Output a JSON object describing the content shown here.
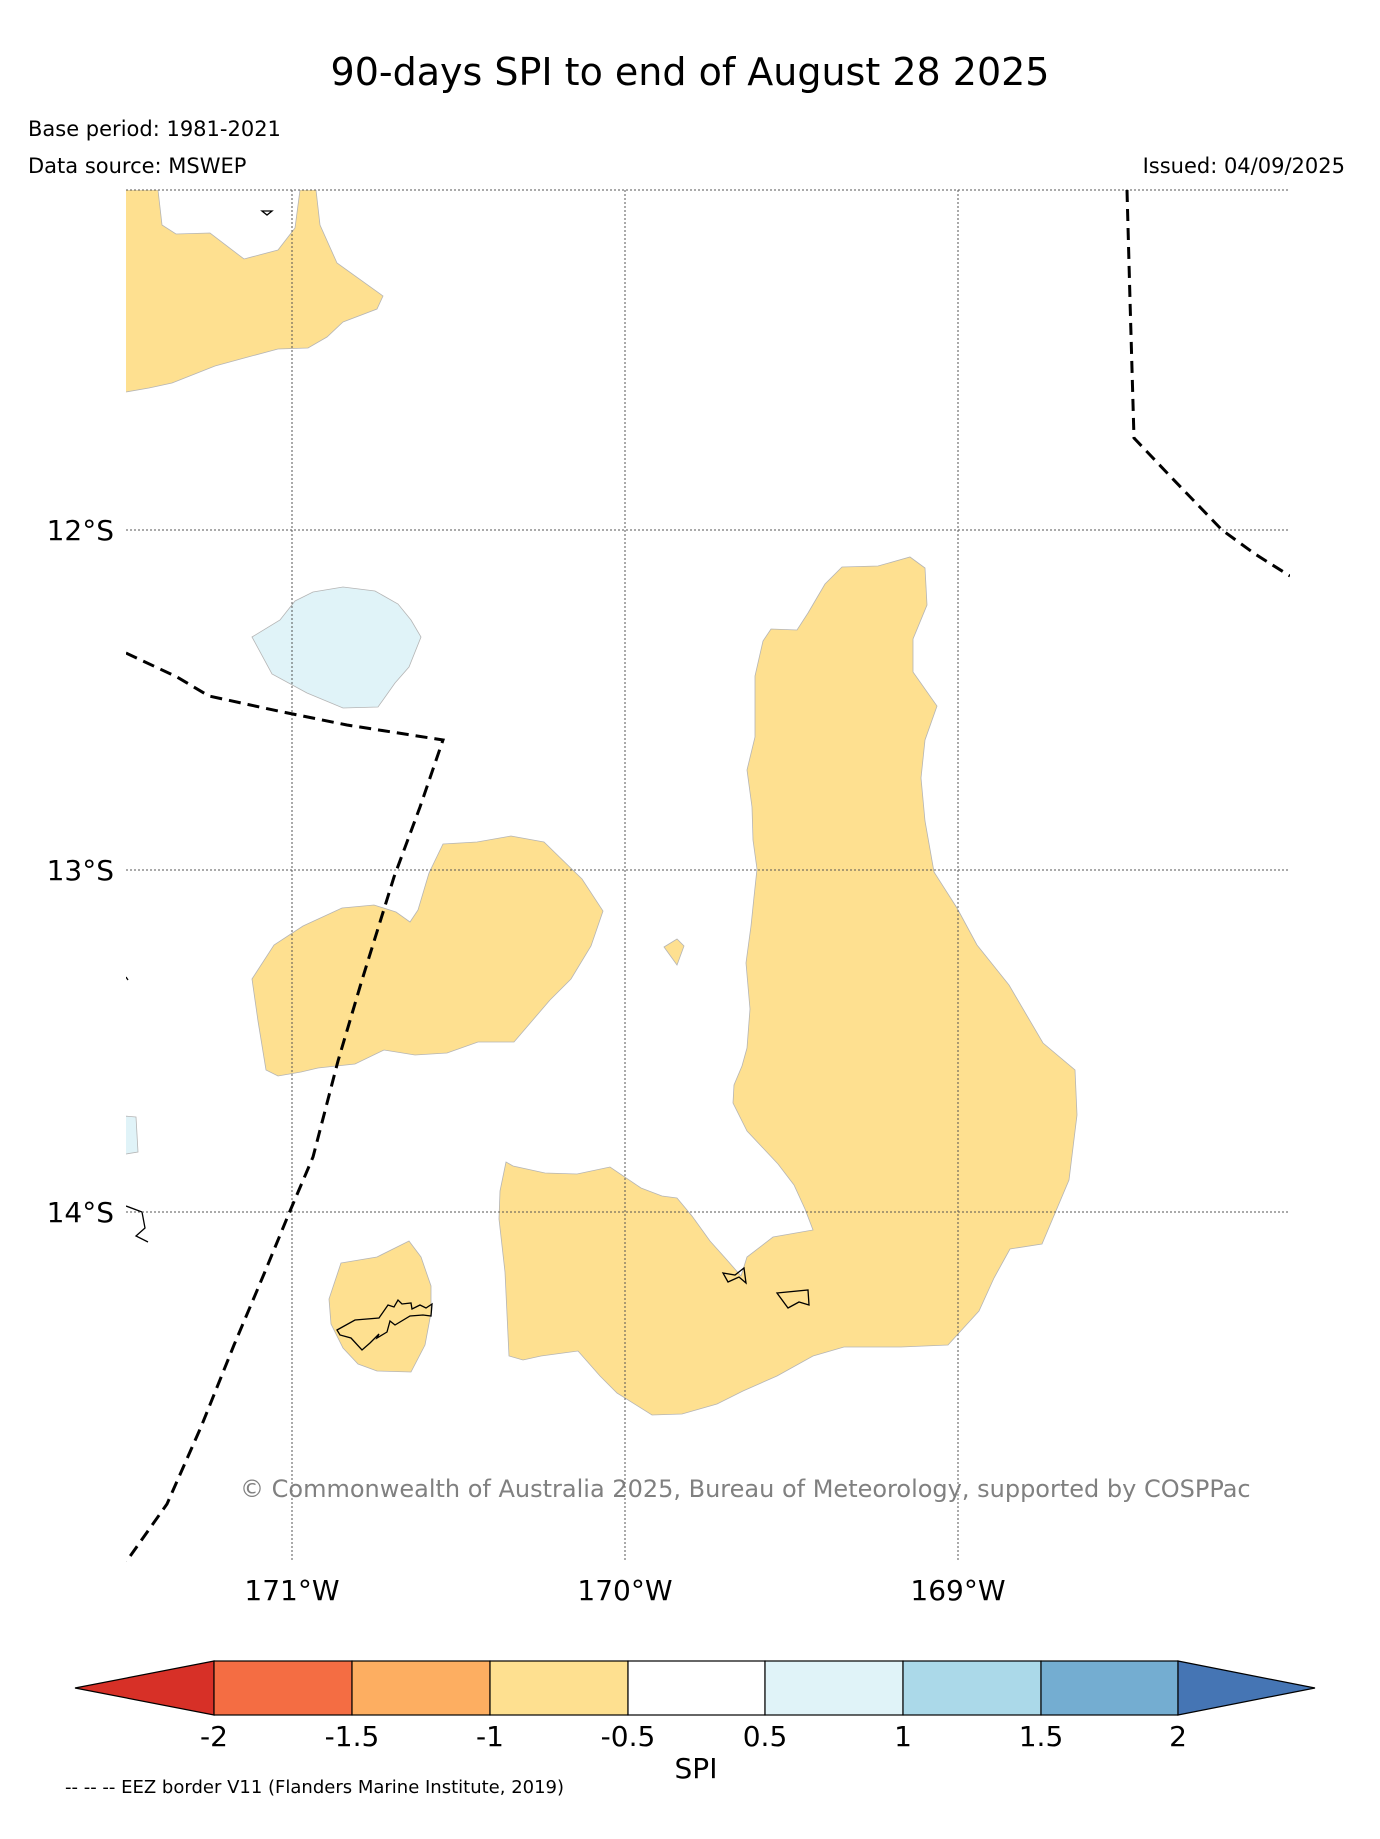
{
  "title": "90-days SPI to end of August 28 2025",
  "base_period": "Base period: 1981-2021",
  "data_source": "Data source: MSWEP",
  "issued": "Issued: 04/09/2025",
  "latitude_labels": [
    "12°S",
    "13°S",
    "14°S"
  ],
  "longitude_labels": [
    "171°W",
    "170°W",
    "169°W"
  ],
  "copyright": "© Commonwealth of Australia 2025, Bureau of Meteorology, supported by COSPPac",
  "colorbar": {
    "label": "SPI",
    "ticks": [
      "-2",
      "-1.5",
      "-1",
      "-0.5",
      "0.5",
      "1",
      "1.5",
      "2"
    ],
    "colors": [
      "#d73027",
      "#f46d43",
      "#fdae61",
      "#fee090",
      "#ffffff",
      "#e0f3f8",
      "#abd9e9",
      "#74add1",
      "#4575b4"
    ]
  },
  "legend_footnote": "-- -- -- EEZ border V11 (Flanders Marine Institute, 2019)"
}
